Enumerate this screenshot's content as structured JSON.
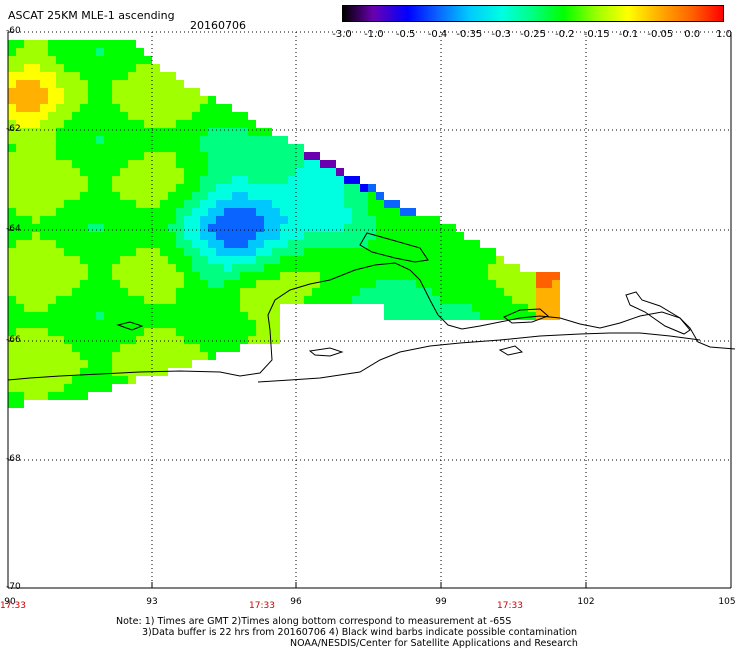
{
  "header": {
    "title": "ASCAT 25KM MLE-1 ascending",
    "date": "20160706"
  },
  "colorbar": {
    "labels": [
      "-3.0",
      "-1.0",
      "-0.5",
      "-0.4",
      "-0.35",
      "-0.3",
      "-0.25",
      "-0.2",
      "-0.15",
      "-0.1",
      "-0.05",
      "0.0",
      "1.0"
    ],
    "colors": [
      "#000000",
      "#6a00b0",
      "#0000ff",
      "#0a64ff",
      "#00c8ff",
      "#00ffe0",
      "#00ff80",
      "#00ff00",
      "#a0ff00",
      "#ffff00",
      "#ffb000",
      "#ff6000",
      "#ff0000"
    ]
  },
  "axes": {
    "lat_labels": [
      "-60",
      "-62",
      "-64",
      "-66",
      "-68",
      "-70"
    ],
    "lon_labels": [
      "90",
      "93",
      "96",
      "99",
      "102",
      "105"
    ],
    "time_labels": [
      "17:33",
      "17:33",
      "17:33"
    ]
  },
  "notes": {
    "line1": "Note: 1) Times are GMT 2)Times along bottom correspond to measurement at -65S",
    "line2": "3)Data buffer is 22 hrs from 20160706 4) Black wind barbs indicate possible contamination",
    "line3": "NOAA/NESDIS/Center for Satellite Applications and Research"
  }
}
